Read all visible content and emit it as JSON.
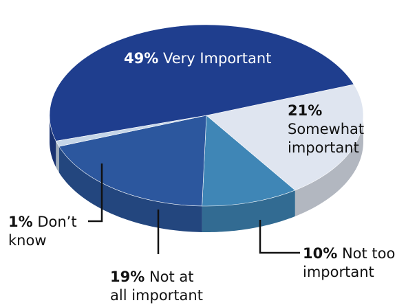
{
  "chart_data": {
    "type": "pie",
    "categories": [
      "Very Important",
      "Somewhat important",
      "Not too important",
      "Not at all important",
      "Don’t know"
    ],
    "values": [
      49,
      21,
      10,
      19,
      1
    ],
    "value_labels": [
      "49%",
      "21%",
      "10%",
      "19%",
      "1%"
    ],
    "colors": [
      "#1f3e8e",
      "#dfe5f0",
      "#3f86b6",
      "#2c579e",
      "#c6d6e8"
    ]
  }
}
